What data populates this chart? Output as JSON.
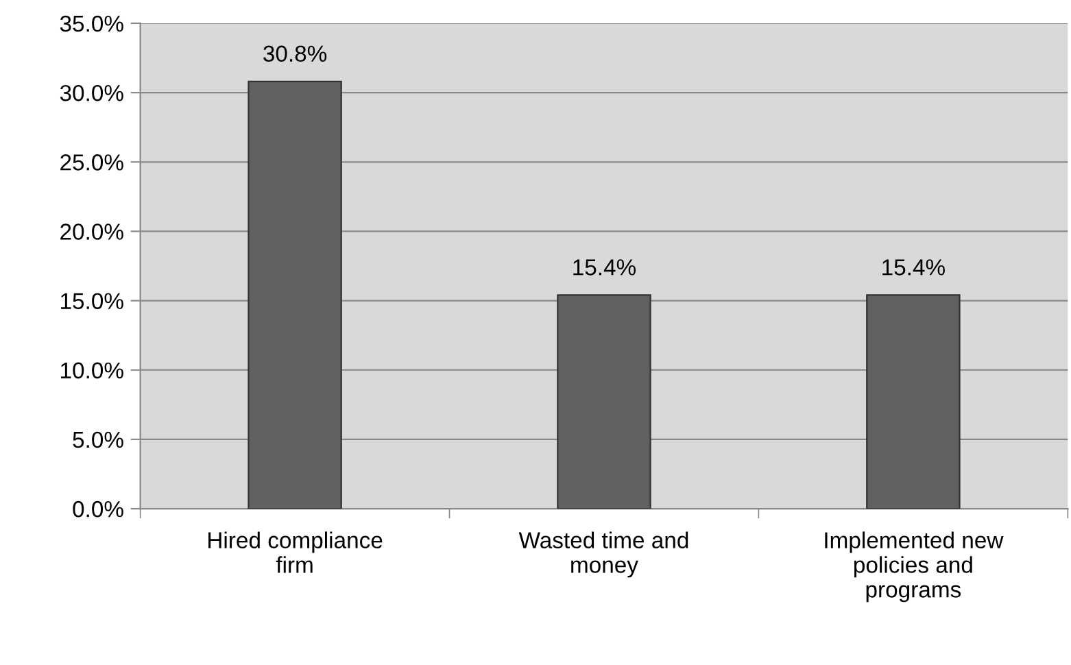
{
  "chart_data": {
    "type": "bar",
    "categories": [
      "Hired compliance\nfirm",
      "Wasted time and\nmoney",
      "Implemented new\npolicies and\nprograms"
    ],
    "values": [
      30.8,
      15.4,
      15.4
    ],
    "color": "#606060",
    "value_labels": [
      "30.8%",
      "15.4%",
      "15.4%"
    ],
    "ylim": [
      0,
      35
    ],
    "yticks": [
      {
        "value": 0,
        "label": "0.0%"
      },
      {
        "value": 5,
        "label": "5.0%"
      },
      {
        "value": 10,
        "label": "10.0%"
      },
      {
        "value": 15,
        "label": "15.0%"
      },
      {
        "value": 20,
        "label": "20.0%"
      },
      {
        "value": 25,
        "label": "25.0%"
      },
      {
        "value": 30,
        "label": "30.0%"
      },
      {
        "value": 35,
        "label": "35.0%"
      }
    ],
    "grid": "y",
    "legend": false
  }
}
